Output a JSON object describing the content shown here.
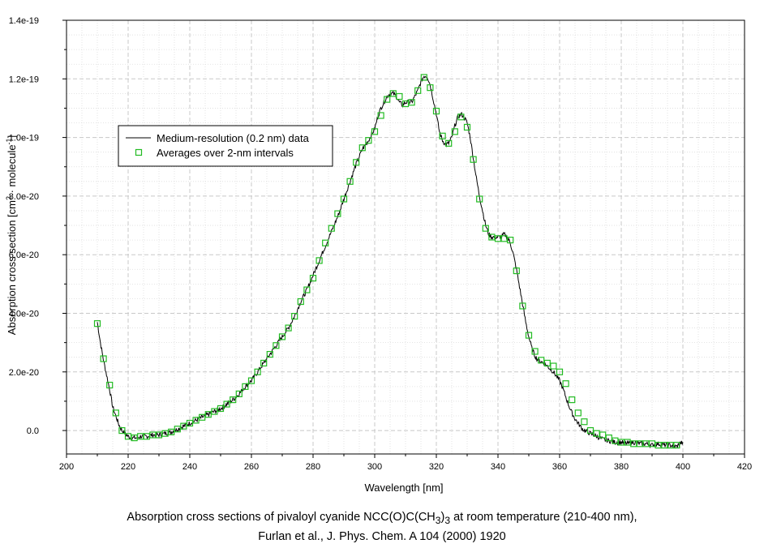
{
  "caption": {
    "line1_prefix": "Absorption cross sections of pivaloyl cyanide NCC(O)C(CH",
    "line1_sub1": "3",
    "line1_mid": ")",
    "line1_sub2": "3",
    "line1_suffix": " at room temperature (210-400 nm),",
    "line2": "Furlan et al., J. Phys. Chem. A 104 (2000) 1920"
  },
  "chart_data": {
    "type": "line",
    "xlabel": "Wavelength [nm]",
    "ylabel_main": "Absorption cross section [cm",
    "ylabel_sup1": "2",
    "ylabel_mid": " · molecule",
    "ylabel_sup2": "-1",
    "ylabel_end": "]",
    "xlim": [
      200,
      420
    ],
    "ylim": [
      -8e-21,
      1.4e-19
    ],
    "x_ticks": [
      200,
      220,
      240,
      260,
      280,
      300,
      320,
      340,
      360,
      380,
      400,
      420
    ],
    "x_tick_labels": [
      "200",
      "220",
      "240",
      "260",
      "280",
      "300",
      "320",
      "340",
      "360",
      "380",
      "400",
      "420"
    ],
    "y_ticks": [
      0,
      2e-20,
      4e-20,
      6e-20,
      8e-20,
      1e-19,
      1.2e-19,
      1.4e-19
    ],
    "y_tick_labels": [
      "0.0",
      "2.0e-20",
      "4.0e-20",
      "6.0e-20",
      "8.0e-20",
      "1.0e-19",
      "1.2e-19",
      "1.4e-19"
    ],
    "grid": true,
    "legend_position": "upper-left",
    "colors": {
      "line": "#000000",
      "markers": "#22bb22",
      "grid": "#c8c8c8",
      "frame": "#000000"
    },
    "series": [
      {
        "name": "Medium-resolution (0.2 nm) data",
        "style": "line",
        "x": [
          210,
          211,
          212,
          213,
          214,
          215,
          216,
          217,
          218,
          219,
          220,
          221,
          222,
          223,
          224,
          226,
          228,
          230,
          232,
          234,
          236,
          238,
          240,
          242,
          244,
          246,
          248,
          250,
          252,
          254,
          256,
          258,
          260,
          262,
          264,
          266,
          268,
          270,
          272,
          274,
          276,
          278,
          280,
          282,
          284,
          286,
          288,
          290,
          292,
          294,
          296,
          298,
          300,
          301,
          302,
          303,
          304,
          305,
          306,
          307,
          308,
          309,
          310,
          311,
          312,
          313,
          314,
          315,
          316,
          317,
          318,
          319,
          320,
          321,
          322,
          323,
          324,
          325,
          326,
          327,
          328,
          329,
          330,
          331,
          332,
          333,
          334,
          335,
          336,
          337,
          338,
          339,
          340,
          341,
          342,
          343,
          344,
          345,
          346,
          347,
          348,
          349,
          350,
          351,
          352,
          353,
          354,
          355,
          356,
          357,
          358,
          359,
          360,
          361,
          362,
          363,
          364,
          365,
          366,
          367,
          368,
          369,
          370,
          372,
          374,
          376,
          378,
          380,
          382,
          384,
          386,
          388,
          390,
          392,
          394,
          396,
          398,
          399,
          400
        ],
        "y": [
          3.7e-20,
          3e-20,
          2.4e-20,
          1.9e-20,
          1.4e-20,
          8e-21,
          5e-21,
          2e-21,
          0,
          -1e-21,
          -2e-21,
          -2.5e-21,
          -2.5e-21,
          -2.5e-21,
          -2e-21,
          -2e-21,
          -1.5e-21,
          -1.5e-21,
          -1e-21,
          -5e-22,
          5e-22,
          1.5e-21,
          2.5e-21,
          3.5e-21,
          4.5e-21,
          5.5e-21,
          6.5e-21,
          7.5e-21,
          9e-21,
          1.05e-20,
          1.25e-20,
          1.5e-20,
          1.7e-20,
          2e-20,
          2.3e-20,
          2.6e-20,
          2.9e-20,
          3.2e-20,
          3.5e-20,
          3.9e-20,
          4.4e-20,
          4.8e-20,
          5.3e-20,
          5.8e-20,
          6.3e-20,
          6.8e-20,
          7.3e-20,
          7.9e-20,
          8.5e-20,
          9.1e-20,
          9.6e-20,
          9.9e-20,
          1.03e-19,
          1.07e-19,
          1.1e-19,
          1.12e-19,
          1.14e-19,
          1.15e-19,
          1.15e-19,
          1.14e-19,
          1.12e-19,
          1.11e-19,
          1.12e-19,
          1.12e-19,
          1.12e-19,
          1.14e-19,
          1.16e-19,
          1.19e-19,
          1.21e-19,
          1.21e-19,
          1.18e-19,
          1.13e-19,
          1.08e-19,
          1.02e-19,
          9.9e-20,
          9.75e-20,
          9.8e-20,
          1e-19,
          1.04e-19,
          1.07e-19,
          1.08e-19,
          1.07e-19,
          1.05e-19,
          1e-19,
          9.3e-20,
          8.6e-20,
          8e-20,
          7.5e-20,
          7e-20,
          6.7e-20,
          6.6e-20,
          6.6e-20,
          6.6e-20,
          6.6e-20,
          6.7e-20,
          6.6e-20,
          6.4e-20,
          6e-20,
          5.5e-20,
          4.9e-20,
          4.3e-20,
          3.7e-20,
          3.2e-20,
          2.8e-20,
          2.55e-20,
          2.4e-20,
          2.35e-20,
          2.3e-20,
          2.2e-20,
          2.1e-20,
          2e-20,
          1.85e-20,
          1.7e-20,
          1.45e-20,
          1.15e-20,
          8.5e-21,
          6e-21,
          4e-21,
          2.5e-21,
          1e-21,
          0,
          -5e-22,
          -1e-21,
          -2e-21,
          -3e-21,
          -3.5e-21,
          -4e-21,
          -4e-21,
          -4.5e-21,
          -4e-21,
          -4.5e-21,
          -4.5e-21,
          -5e-21,
          -4.5e-21,
          -5e-21,
          -5e-21,
          -5.5e-21,
          -4.5e-21,
          -4e-21
        ]
      },
      {
        "name": "Averages over 2-nm intervals",
        "style": "markers",
        "x": [
          210,
          212,
          214,
          216,
          218,
          220,
          222,
          224,
          226,
          228,
          230,
          232,
          234,
          236,
          238,
          240,
          242,
          244,
          246,
          248,
          250,
          252,
          254,
          256,
          258,
          260,
          262,
          264,
          266,
          268,
          270,
          272,
          274,
          276,
          278,
          280,
          282,
          284,
          286,
          288,
          290,
          292,
          294,
          296,
          298,
          300,
          302,
          304,
          306,
          308,
          310,
          312,
          314,
          316,
          318,
          320,
          322,
          324,
          326,
          328,
          330,
          332,
          334,
          336,
          338,
          340,
          342,
          344,
          346,
          348,
          350,
          352,
          354,
          356,
          358,
          360,
          362,
          364,
          366,
          368,
          370,
          372,
          374,
          376,
          378,
          380,
          382,
          384,
          386,
          388,
          390,
          392,
          394,
          396,
          398
        ],
        "y": [
          3.65e-20,
          2.45e-20,
          1.55e-20,
          6e-21,
          0,
          -2e-21,
          -2.5e-21,
          -2e-21,
          -2e-21,
          -1.5e-21,
          -1.5e-21,
          -1e-21,
          -5e-22,
          5e-22,
          1.5e-21,
          2.5e-21,
          3.5e-21,
          4.5e-21,
          5.5e-21,
          6.5e-21,
          7.5e-21,
          9e-21,
          1.05e-20,
          1.25e-20,
          1.5e-20,
          1.7e-20,
          2e-20,
          2.3e-20,
          2.6e-20,
          2.9e-20,
          3.2e-20,
          3.5e-20,
          3.9e-20,
          4.4e-20,
          4.8e-20,
          5.2e-20,
          5.8e-20,
          6.4e-20,
          6.9e-20,
          7.4e-20,
          7.9e-20,
          8.5e-20,
          9.15e-20,
          9.65e-20,
          9.9e-20,
          1.02e-19,
          1.075e-19,
          1.13e-19,
          1.15e-19,
          1.14e-19,
          1.115e-19,
          1.12e-19,
          1.16e-19,
          1.205e-19,
          1.17e-19,
          1.09e-19,
          1.005e-19,
          9.8e-20,
          1.02e-19,
          1.07e-19,
          1.035e-19,
          9.25e-20,
          7.9e-20,
          6.9e-20,
          6.6e-20,
          6.55e-20,
          6.55e-20,
          6.5e-20,
          5.45e-20,
          4.25e-20,
          3.25e-20,
          2.7e-20,
          2.4e-20,
          2.3e-20,
          2.2e-20,
          2e-20,
          1.6e-20,
          1.05e-20,
          6e-21,
          3e-21,
          0,
          -1e-21,
          -1.5e-21,
          -2.5e-21,
          -3.5e-21,
          -4e-21,
          -4e-21,
          -4.5e-21,
          -4.5e-21,
          -4.5e-21,
          -4.5e-21,
          -5e-21,
          -5e-21,
          -5e-21,
          -5e-21
        ]
      }
    ]
  }
}
